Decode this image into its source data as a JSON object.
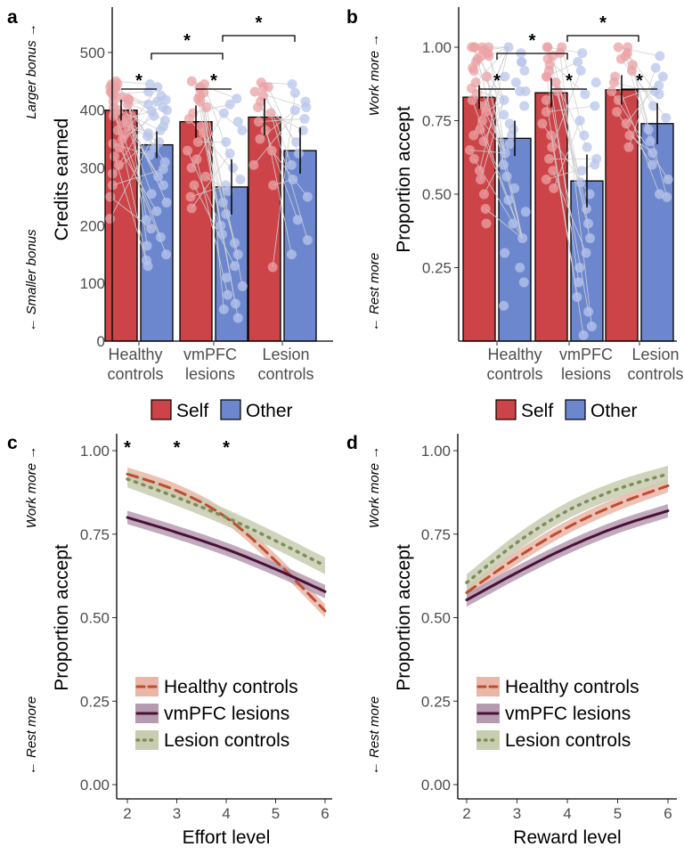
{
  "colors": {
    "self": "#CC4448",
    "other": "#6C87CE",
    "self_light": "#EBA1A4",
    "other_light": "#B8C6EB",
    "healthy": "#BF4C2F",
    "healthy_band": "#E8B7A8",
    "vmpfc": "#4A1038",
    "vmpfc_band": "#B59BB0",
    "lesion": "#7C8C5B",
    "lesion_band": "#C8CDB0",
    "axis": "#000000",
    "tick_text": "#4D4D4D",
    "connector": "#D0D0D0"
  },
  "legend_top": {
    "self_label": "Self",
    "other_label": "Other"
  },
  "legend_bottom": {
    "healthy_label": "Healthy controls",
    "vmpfc_label": "vmPFC lesions",
    "lesion_label": "Lesion controls"
  },
  "panels": {
    "a": {
      "letter": "a",
      "side_top": "Larger bonus →",
      "side_bottom": "← Smaller bonus",
      "ylabel": "Credits earned",
      "sig_mark": "*"
    },
    "b": {
      "letter": "b",
      "side_top": "Work more →",
      "side_bottom": "← Rest more",
      "ylabel": "Proportion accept",
      "sig_mark": "*"
    },
    "c": {
      "letter": "c",
      "side_top": "Work more →",
      "side_bottom": "← Rest more",
      "ylabel": "Proportion accept",
      "xlabel": "Effort level",
      "sig_mark": "*"
    },
    "d": {
      "letter": "d",
      "side_top": "Work more →",
      "side_bottom": "← Rest more",
      "ylabel": "Proportion accept",
      "xlabel": "Reward level"
    }
  },
  "chart_data": [
    {
      "panel": "a",
      "type": "bar",
      "categories": [
        "Healthy controls",
        "vmPFC lesions",
        "Lesion controls"
      ],
      "series": [
        {
          "name": "Self",
          "values": [
            400,
            380,
            388
          ],
          "error": [
            18,
            28,
            32
          ]
        },
        {
          "name": "Other",
          "values": [
            340,
            267,
            330
          ],
          "error": [
            23,
            48,
            40
          ]
        }
      ],
      "ylabel": "Credits earned",
      "ylim": [
        0,
        560
      ],
      "yticks": [
        0,
        100,
        200,
        300,
        400,
        500
      ],
      "significance": [
        "Self vs Other: Healthy controls",
        "Self vs Other: vmPFC lesions",
        "Other: Healthy controls vs vmPFC lesions",
        "Other: vmPFC lesions vs Lesion controls"
      ],
      "individual_points": {
        "Healthy controls": {
          "self": [
            450,
            445,
            440,
            438,
            432,
            428,
            425,
            422,
            418,
            415,
            410,
            405,
            400,
            395,
            390,
            385,
            378,
            372,
            365,
            358,
            350,
            342,
            335,
            320,
            305,
            290,
            270,
            250,
            212,
            440,
            445,
            430,
            420
          ],
          "other": [
            445,
            440,
            432,
            425,
            418,
            410,
            405,
            398,
            390,
            382,
            372,
            365,
            355,
            345,
            335,
            322,
            310,
            298,
            285,
            270,
            255,
            240,
            225,
            210,
            195,
            180,
            165,
            150,
            140,
            130,
            415,
            400,
            360
          ]
        },
        "vmPFC lesions": {
          "self": [
            450,
            445,
            438,
            430,
            425,
            415,
            405,
            395,
            385,
            372,
            360,
            345,
            330,
            315,
            300,
            285,
            270,
            250,
            230,
            440,
            420
          ],
          "other": [
            420,
            410,
            395,
            380,
            365,
            345,
            325,
            300,
            280,
            260,
            240,
            220,
            200,
            185,
            170,
            150,
            130,
            110,
            95,
            80,
            65,
            55,
            40,
            270
          ]
        },
        "Lesion controls": {
          "self": [
            448,
            440,
            432,
            425,
            415,
            405,
            395,
            380,
            365,
            350,
            330,
            305,
            270,
            128,
            440
          ],
          "other": [
            445,
            430,
            415,
            400,
            385,
            365,
            345,
            325,
            305,
            280,
            250,
            210,
            175,
            150,
            405
          ]
        }
      }
    },
    {
      "panel": "b",
      "type": "bar",
      "categories": [
        "Healthy controls",
        "vmPFC lesions",
        "Lesion controls"
      ],
      "series": [
        {
          "name": "Self",
          "values": [
            0.83,
            0.845,
            0.855
          ],
          "error": [
            0.04,
            0.05,
            0.05
          ]
        },
        {
          "name": "Other",
          "values": [
            0.69,
            0.545,
            0.74
          ],
          "error": [
            0.06,
            0.09,
            0.07
          ]
        }
      ],
      "ylabel": "Proportion accept",
      "ylim": [
        0,
        1.1
      ],
      "yticks": [
        0.25,
        0.5,
        0.75,
        1.0
      ],
      "significance": [
        "Self vs Other: Healthy controls",
        "Self vs Other: vmPFC lesions",
        "Self vs Other: Lesion controls",
        "Other: Healthy controls vs vmPFC lesions",
        "Other: vmPFC lesions vs Lesion controls"
      ],
      "individual_points": {
        "Healthy controls": {
          "self": [
            1.0,
            1.0,
            1.0,
            1.0,
            0.99,
            0.98,
            0.97,
            0.96,
            0.95,
            0.93,
            0.92,
            0.9,
            0.88,
            0.86,
            0.84,
            0.82,
            0.8,
            0.78,
            0.75,
            0.72,
            0.7,
            0.68,
            0.65,
            0.62,
            0.58,
            0.55,
            0.5,
            0.45,
            0.4,
            1.0,
            0.97
          ],
          "other": [
            1.0,
            0.98,
            0.95,
            0.92,
            0.9,
            0.88,
            0.85,
            0.82,
            0.8,
            0.77,
            0.74,
            0.72,
            0.7,
            0.67,
            0.64,
            0.6,
            0.56,
            0.52,
            0.48,
            0.44,
            0.4,
            0.35,
            0.3,
            0.25,
            0.2,
            0.12,
            0.95,
            0.85
          ]
        },
        "vmPFC lesions": {
          "self": [
            1.0,
            1.0,
            1.0,
            0.98,
            0.96,
            0.94,
            0.92,
            0.9,
            0.88,
            0.85,
            0.82,
            0.78,
            0.74,
            0.7,
            0.66,
            0.62,
            0.58,
            0.55,
            0.52,
            0.97,
            0.9
          ],
          "other": [
            0.98,
            0.95,
            0.92,
            0.88,
            0.84,
            0.8,
            0.75,
            0.7,
            0.66,
            0.62,
            0.58,
            0.54,
            0.5,
            0.45,
            0.4,
            0.35,
            0.3,
            0.25,
            0.2,
            0.15,
            0.1,
            0.05,
            0.02,
            0.6
          ]
        },
        "Lesion controls": {
          "self": [
            1.0,
            1.0,
            0.98,
            0.96,
            0.94,
            0.92,
            0.9,
            0.88,
            0.85,
            0.82,
            0.78,
            0.74,
            0.7,
            0.66,
            0.97
          ],
          "other": [
            0.97,
            0.93,
            0.9,
            0.87,
            0.84,
            0.8,
            0.76,
            0.72,
            0.68,
            0.64,
            0.6,
            0.55,
            0.5,
            0.49,
            0.85
          ]
        }
      }
    },
    {
      "panel": "c",
      "type": "line",
      "x": [
        2,
        3,
        4,
        5,
        6
      ],
      "xlabel": "Effort level",
      "ylabel": "Proportion accept",
      "ylim": [
        0,
        1.0
      ],
      "yticks": [
        0.0,
        0.25,
        0.5,
        0.75,
        1.0
      ],
      "significant_at_x": [
        2,
        3,
        4
      ],
      "series": [
        {
          "name": "Healthy controls",
          "style": "dashed",
          "values": [
            0.93,
            0.88,
            0.8,
            0.67,
            0.52
          ],
          "band": 0.02
        },
        {
          "name": "vmPFC lesions",
          "style": "solid",
          "values": [
            0.8,
            0.755,
            0.705,
            0.645,
            0.578
          ],
          "band": 0.02
        },
        {
          "name": "Lesion controls",
          "style": "dotted",
          "values": [
            0.915,
            0.86,
            0.8,
            0.73,
            0.655
          ],
          "band": 0.025
        }
      ]
    },
    {
      "panel": "d",
      "type": "line",
      "x": [
        2,
        3,
        4,
        5,
        6
      ],
      "xlabel": "Reward level",
      "ylabel": "Proportion accept",
      "ylim": [
        0,
        1.0
      ],
      "yticks": [
        0.0,
        0.25,
        0.5,
        0.75,
        1.0
      ],
      "series": [
        {
          "name": "Healthy controls",
          "style": "dashed",
          "values": [
            0.575,
            0.68,
            0.77,
            0.84,
            0.895
          ],
          "band": 0.02
        },
        {
          "name": "vmPFC lesions",
          "style": "solid",
          "values": [
            0.553,
            0.635,
            0.71,
            0.772,
            0.82
          ],
          "band": 0.02
        },
        {
          "name": "Lesion controls",
          "style": "dotted",
          "values": [
            0.605,
            0.725,
            0.82,
            0.885,
            0.93
          ],
          "band": 0.025
        }
      ]
    }
  ]
}
